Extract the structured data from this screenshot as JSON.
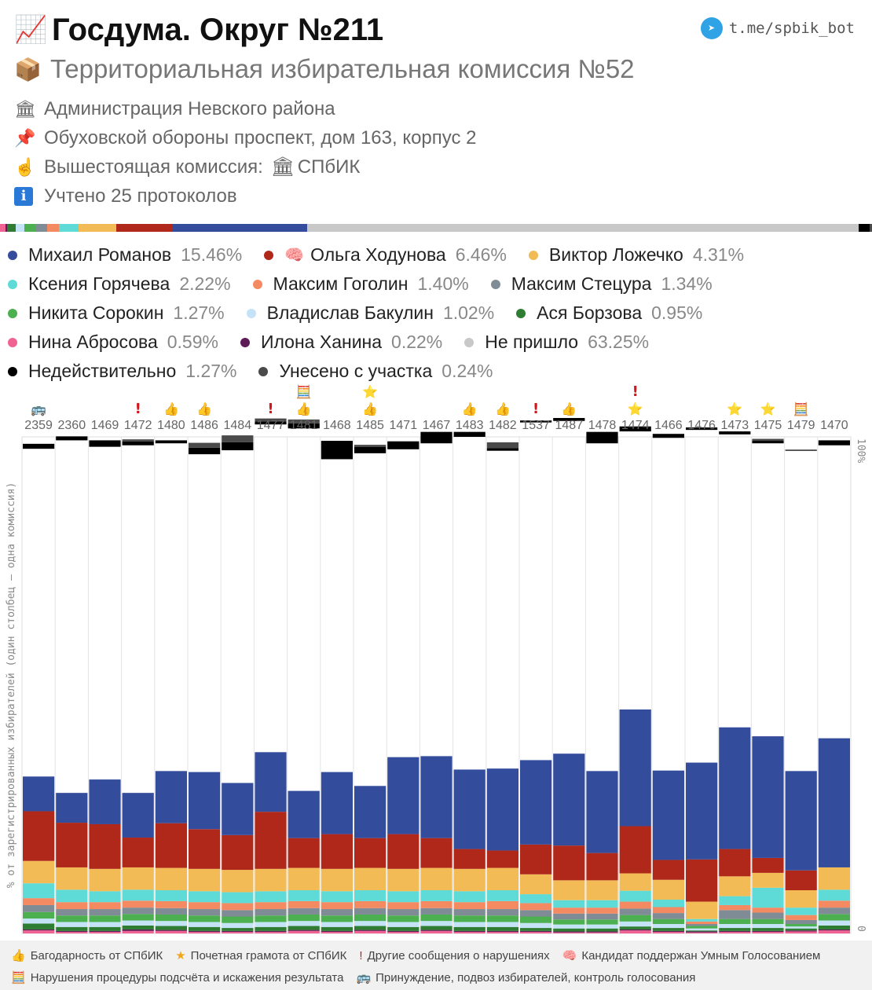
{
  "header": {
    "title_icon": "📈",
    "title": "Госдума. Округ №211",
    "subtitle_icon": "📦",
    "subtitle": "Территориальная избирательная комиссия №52",
    "telegram": "t.me/spbik_bot"
  },
  "info": {
    "admin_icon": "🏛",
    "admin": "Администрация Невского района",
    "address_icon": "📌",
    "address": "Обуховской обороны проспект, дом 163, корпус 2",
    "parent_icon": "☝",
    "parent_prefix": "Вышестоящая комиссия:",
    "parent_name_icon": "🏛",
    "parent_name": "СПбИК",
    "protocols_icon": "i",
    "protocols": "Учтено 25 протоколов"
  },
  "legend": [
    [
      {
        "name": "Михаил Романов",
        "pct": "15.46%",
        "color": "#334c9b",
        "emoji": ""
      },
      {
        "name": "Ольга Ходунова",
        "pct": "6.46%",
        "color": "#b0281a",
        "emoji": "🧠"
      },
      {
        "name": "Виктор Ложечко",
        "pct": "4.31%",
        "color": "#f2bb55",
        "emoji": ""
      }
    ],
    [
      {
        "name": "Ксения Горячева",
        "pct": "2.22%",
        "color": "#5fdbd7",
        "emoji": ""
      },
      {
        "name": "Максим Гоголин",
        "pct": "1.40%",
        "color": "#f48a62",
        "emoji": ""
      },
      {
        "name": "Максим Стецура",
        "pct": "1.34%",
        "color": "#7f8c95",
        "emoji": ""
      }
    ],
    [
      {
        "name": "Никита Сорокин",
        "pct": "1.27%",
        "color": "#4caf50",
        "emoji": ""
      },
      {
        "name": "Владислав Бакулин",
        "pct": "1.02%",
        "color": "#c5e3f6",
        "emoji": ""
      },
      {
        "name": "Ася Борзова",
        "pct": "0.95%",
        "color": "#2e7d32",
        "emoji": ""
      }
    ],
    [
      {
        "name": "Нина Абросова",
        "pct": "0.59%",
        "color": "#f06292",
        "emoji": ""
      },
      {
        "name": "Илона Ханина",
        "pct": "0.22%",
        "color": "#5e1c57",
        "emoji": ""
      },
      {
        "name": "Не пришло",
        "pct": "63.25%",
        "color": "#c8c8c8",
        "emoji": ""
      }
    ],
    [
      {
        "name": "Недействительно",
        "pct": "1.27%",
        "color": "#000000",
        "emoji": ""
      },
      {
        "name": "Унесено с участка",
        "pct": "0.24%",
        "color": "#4a4a4a",
        "emoji": ""
      }
    ]
  ],
  "chart_data": {
    "type": "bar",
    "stacked": true,
    "ylabel": "% от зарегистрированных избирателей (один столбец — одна комиссия)",
    "ylim": [
      0,
      100
    ],
    "y_tick_top": "100%",
    "y_tick_bottom": "0",
    "categories": [
      "2359",
      "2360",
      "1469",
      "1472",
      "1480",
      "1486",
      "1484",
      "1477",
      "1481",
      "1468",
      "1485",
      "1471",
      "1467",
      "1483",
      "1482",
      "1537",
      "1487",
      "1478",
      "1474",
      "1466",
      "1476",
      "1473",
      "1475",
      "1479",
      "1470"
    ],
    "markers": [
      [
        "🚌"
      ],
      [],
      [],
      [
        "!"
      ],
      [
        "👍"
      ],
      [
        "👍"
      ],
      [],
      [
        "!"
      ],
      [
        "🧮",
        "👍"
      ],
      [],
      [
        "⭐",
        "👍"
      ],
      [],
      [],
      [
        "👍"
      ],
      [
        "👍"
      ],
      [
        "!"
      ],
      [
        "👍"
      ],
      [],
      [
        "!",
        "⭐"
      ],
      [],
      [],
      [
        "⭐"
      ],
      [
        "⭐"
      ],
      [
        "🧮"
      ],
      []
    ],
    "series": [
      {
        "name": "Нина Абросова",
        "color": "#f06292",
        "values": [
          0.6,
          0.3,
          0.3,
          0.5,
          0.5,
          0.3,
          0.3,
          0.3,
          0.5,
          0.3,
          0.5,
          0.3,
          0.5,
          0.3,
          0.3,
          0.3,
          0.2,
          0.2,
          0.6,
          0.3,
          0.2,
          0.3,
          0.3,
          0.4,
          0.6
        ]
      },
      {
        "name": "Илона Ханина",
        "color": "#5e1c57",
        "values": [
          0.2,
          0.2,
          0.2,
          0.3,
          0.2,
          0.2,
          0.2,
          0.2,
          0.2,
          0.2,
          0.2,
          0.2,
          0.2,
          0.2,
          0.2,
          0.2,
          0.2,
          0.2,
          0.2,
          0.2,
          0.2,
          0.2,
          0.2,
          0.2,
          0.2
        ]
      },
      {
        "name": "Ася Борзова",
        "color": "#2e7d32",
        "values": [
          1.2,
          0.8,
          0.8,
          0.8,
          0.8,
          0.8,
          0.6,
          0.8,
          0.8,
          0.8,
          0.8,
          0.8,
          0.8,
          0.8,
          0.8,
          0.6,
          0.6,
          0.6,
          0.6,
          0.6,
          0.2,
          0.6,
          0.6,
          0.4,
          0.8
        ]
      },
      {
        "name": "Владислав Бакулин",
        "color": "#c5e3f6",
        "values": [
          1.0,
          1.0,
          1.0,
          1.0,
          1.0,
          1.0,
          1.0,
          1.0,
          1.0,
          1.0,
          1.0,
          1.0,
          1.0,
          1.0,
          1.0,
          1.0,
          0.8,
          0.8,
          1.0,
          0.8,
          0.4,
          0.8,
          0.8,
          0.4,
          1.0
        ]
      },
      {
        "name": "Никита Сорокин",
        "color": "#4caf50",
        "values": [
          1.3,
          1.3,
          1.3,
          1.3,
          1.3,
          1.3,
          1.3,
          1.3,
          1.3,
          1.3,
          1.3,
          1.3,
          1.3,
          1.3,
          1.3,
          1.3,
          1.0,
          1.0,
          1.3,
          1.0,
          0.5,
          1.0,
          1.0,
          0.5,
          1.3
        ]
      },
      {
        "name": "Максим Стецура",
        "color": "#7f8c95",
        "values": [
          1.4,
          1.3,
          1.3,
          1.3,
          1.3,
          1.3,
          1.3,
          1.3,
          1.3,
          1.3,
          1.3,
          1.3,
          1.3,
          1.3,
          1.3,
          1.3,
          1.2,
          1.2,
          1.3,
          1.2,
          0.4,
          1.8,
          1.3,
          0.8,
          1.3
        ]
      },
      {
        "name": "Максим Гоголин",
        "color": "#f48a62",
        "values": [
          1.4,
          1.4,
          1.4,
          1.4,
          1.4,
          1.4,
          1.4,
          1.4,
          1.4,
          1.4,
          1.4,
          1.4,
          1.4,
          1.4,
          1.6,
          1.4,
          1.2,
          1.2,
          1.4,
          1.2,
          0.5,
          1.0,
          1.0,
          1.0,
          1.4
        ]
      },
      {
        "name": "Ксения Горячева",
        "color": "#5fdbd7",
        "values": [
          3.0,
          2.5,
          2.2,
          2.2,
          2.2,
          2.2,
          2.2,
          2.2,
          2.2,
          2.2,
          2.2,
          2.2,
          2.2,
          2.2,
          2.2,
          1.8,
          1.5,
          1.5,
          2.2,
          1.5,
          0.5,
          1.8,
          4.0,
          1.5,
          2.2
        ]
      },
      {
        "name": "Виктор Ложечко",
        "color": "#f2bb55",
        "values": [
          4.5,
          4.5,
          4.5,
          4.5,
          4.5,
          4.5,
          4.5,
          4.5,
          4.5,
          4.5,
          4.5,
          4.5,
          4.5,
          4.5,
          4.5,
          4.0,
          4.0,
          4.0,
          3.5,
          4.0,
          3.5,
          4.0,
          3.0,
          3.5,
          4.5
        ]
      },
      {
        "name": "Ольга Ходунова",
        "color": "#b0281a",
        "values": [
          10.0,
          9.0,
          9.0,
          6.0,
          9.0,
          8.0,
          7.0,
          11.5,
          6.0,
          7.0,
          6.0,
          7.0,
          6.0,
          4.0,
          3.5,
          6.0,
          7.0,
          5.5,
          9.5,
          4.0,
          8.5,
          5.5,
          3.0,
          4.0,
          0
        ]
      },
      {
        "name": "Михаил Романов",
        "color": "#334c9b",
        "values": [
          7.0,
          6.0,
          9.0,
          9.0,
          10.5,
          11.5,
          10.5,
          12.0,
          9.5,
          12.5,
          10.5,
          15.5,
          16.5,
          16.0,
          16.5,
          17.0,
          18.5,
          16.5,
          23.5,
          18.0,
          19.5,
          24.5,
          24.5,
          20.0,
          26.0
        ]
      },
      {
        "name": "Не пришло",
        "color": "#ffffff",
        "values": [
          66.0,
          71.0,
          67.0,
          70.0,
          66.0,
          64.0,
          67.0,
          66.0,
          73.0,
          63.0,
          67.0,
          62.0,
          63.0,
          67.0,
          64.0,
          68.0,
          67.0,
          66.0,
          56.0,
          67.0,
          67.0,
          59.0,
          59.0,
          64.5,
          59.0
        ]
      },
      {
        "name": "Недействительно",
        "color": "#000000",
        "values": [
          1.0,
          0.8,
          1.3,
          0.8,
          0.6,
          1.3,
          1.6,
          0.6,
          1.0,
          3.7,
          1.3,
          1.6,
          2.3,
          1.0,
          0.5,
          0.4,
          0.6,
          2.3,
          1.0,
          0.8,
          0.5,
          0.6,
          0.5,
          0.2,
          1.0
        ]
      },
      {
        "name": "Унесено с участка",
        "color": "#4a4a4a",
        "values": [
          0.0,
          0.0,
          0.0,
          0.4,
          0.0,
          1.0,
          1.4,
          0.6,
          0.8,
          0.0,
          0.4,
          0.0,
          0.0,
          0.0,
          1.2,
          0.0,
          0.0,
          0.0,
          0.0,
          0.0,
          0.0,
          0.0,
          0.4,
          0.0,
          0.0
        ]
      }
    ]
  },
  "footer": {
    "rows": [
      [
        {
          "icon": "👍",
          "text": "Багодарность от СПбИК",
          "icon_color": "#6d3b1d"
        },
        {
          "icon": "★",
          "text": "Почетная грамота от СПбИК",
          "icon_color": "#f2a71a"
        },
        {
          "icon": "!",
          "text": "Другие сообщения о нарушениях",
          "icon_color": "#d4161c"
        },
        {
          "icon": "🧠",
          "text": "Кандидат поддержан Умным Голосованием",
          "icon_color": "#e8739a"
        }
      ],
      [
        {
          "icon": "🧮",
          "text": "Нарушения процедуры подсчёта и искажения результата",
          "icon_color": "#8a5a2b"
        },
        {
          "icon": "🚌",
          "text": "Принуждение, подвоз избирателей, контроль голосования",
          "icon_color": "#2b5fa6"
        }
      ]
    ]
  },
  "progress_bar": [
    {
      "name": "Нина Абросова",
      "color": "#f06292",
      "pct": 0.59
    },
    {
      "name": "Илона Ханина",
      "color": "#5e1c57",
      "pct": 0.22
    },
    {
      "name": "Ася Борзова",
      "color": "#2e7d32",
      "pct": 0.95
    },
    {
      "name": "Владислав Бакулин",
      "color": "#c5e3f6",
      "pct": 1.02
    },
    {
      "name": "Никита Сорокин",
      "color": "#4caf50",
      "pct": 1.27
    },
    {
      "name": "Максим Стецура",
      "color": "#7f8c95",
      "pct": 1.34
    },
    {
      "name": "Максим Гоголин",
      "color": "#f48a62",
      "pct": 1.4
    },
    {
      "name": "Ксения Горячева",
      "color": "#5fdbd7",
      "pct": 2.22
    },
    {
      "name": "Виктор Ложечко",
      "color": "#f2bb55",
      "pct": 4.31
    },
    {
      "name": "Ольга Ходунова",
      "color": "#b0281a",
      "pct": 6.46
    },
    {
      "name": "Михаил Романов",
      "color": "#334c9b",
      "pct": 15.46
    },
    {
      "name": "Не пришло",
      "color": "#c8c8c8",
      "pct": 63.25
    },
    {
      "name": "Недействительно",
      "color": "#000000",
      "pct": 1.27
    },
    {
      "name": "Унесено с участка",
      "color": "#4a4a4a",
      "pct": 0.24
    }
  ]
}
